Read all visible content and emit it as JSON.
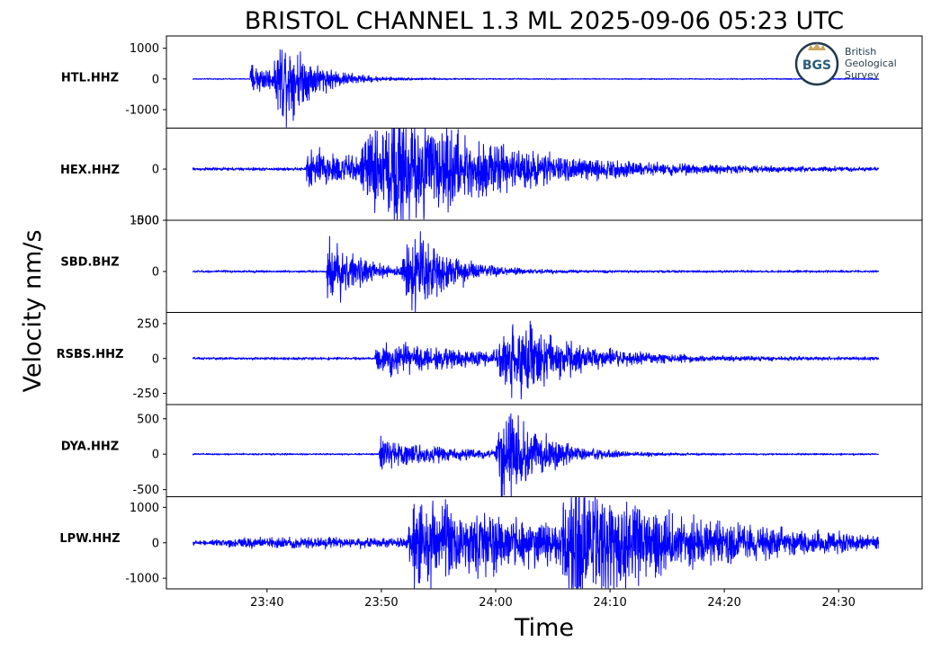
{
  "chart_data": {
    "type": "line",
    "title": "BRISTOL CHANNEL 1.3 ML   2025-09-06 05:23 UTC",
    "xlabel": "Time",
    "ylabel": "Velocity nm/s",
    "x_unit": "minutes after 23:30",
    "xlim": [
      1.2,
      67.3
    ],
    "x_ticks": [
      {
        "value": 10,
        "label": "23:40"
      },
      {
        "value": 20,
        "label": "23:50"
      },
      {
        "value": 30,
        "label": "24:00"
      },
      {
        "value": 40,
        "label": "24:10"
      },
      {
        "value": 50,
        "label": "24:20"
      },
      {
        "value": 60,
        "label": "24:30"
      }
    ],
    "trace_start": 3.5,
    "trace_end": 63.5,
    "line_color": "#0000ff",
    "series": [
      {
        "name": "HTL.HHZ",
        "ylim": [
          -1600,
          1400
        ],
        "ticks": [
          {
            "value": 1000,
            "label": "1000"
          },
          {
            "value": 0,
            "label": "0"
          },
          {
            "value": -1000,
            "label": "-1000"
          }
        ],
        "noise": 12,
        "events": [
          {
            "t": 8.5,
            "amp": 380,
            "decay": 3.5,
            "rise": 0.1
          },
          {
            "t": 10.6,
            "amp": 1200,
            "decay": 2.5,
            "rise": 0.8
          }
        ]
      },
      {
        "name": "HEX.HHZ",
        "ylim": [
          -500,
          400
        ],
        "ticks": [
          {
            "value": 0,
            "label": "0"
          },
          {
            "value": -500,
            "label": "-500"
          }
        ],
        "noise": 10,
        "events": [
          {
            "t": 13.4,
            "amp": 140,
            "decay": 7,
            "rise": 0.1
          },
          {
            "t": 18.0,
            "amp": 320,
            "decay": 4,
            "rise": 1.5
          },
          {
            "t": 20.0,
            "amp": 320,
            "decay": 10,
            "rise": 1.5
          }
        ]
      },
      {
        "name": "SBD.BHZ",
        "ylim": [
          -800,
          1000
        ],
        "ticks": [
          {
            "value": 1000,
            "label": "1000"
          },
          {
            "value": 0,
            "label": "0"
          }
        ],
        "noise": 15,
        "events": [
          {
            "t": 15.2,
            "amp": 520,
            "decay": 2.5,
            "rise": 0.1
          },
          {
            "t": 21.7,
            "amp": 900,
            "decay": 3,
            "rise": 1.2
          }
        ]
      },
      {
        "name": "RSBS.HHZ",
        "ylim": [
          -330,
          330
        ],
        "ticks": [
          {
            "value": 250,
            "label": "250"
          },
          {
            "value": 0,
            "label": "0"
          },
          {
            "value": -250,
            "label": "-250"
          }
        ],
        "noise": 6,
        "events": [
          {
            "t": 19.4,
            "amp": 70,
            "decay": 12,
            "rise": 0.2
          },
          {
            "t": 30.0,
            "amp": 300,
            "decay": 4,
            "rise": 2.0
          }
        ]
      },
      {
        "name": "DYA.HHZ",
        "ylim": [
          -600,
          700
        ],
        "ticks": [
          {
            "value": 500,
            "label": "500"
          },
          {
            "value": 0,
            "label": "0"
          },
          {
            "value": -500,
            "label": "-500"
          }
        ],
        "noise": 8,
        "events": [
          {
            "t": 19.8,
            "amp": 150,
            "decay": 6,
            "rise": 0.1
          },
          {
            "t": 30.0,
            "amp": 650,
            "decay": 3,
            "rise": 0.6
          }
        ]
      },
      {
        "name": "LPW.HHZ",
        "ylim": [
          -1300,
          1300
        ],
        "ticks": [
          {
            "value": 1000,
            "label": "1000"
          },
          {
            "value": 0,
            "label": "0"
          },
          {
            "value": -1000,
            "label": "-1000"
          }
        ],
        "noise": 40,
        "events": [
          {
            "t": 5.0,
            "amp": 70,
            "decay": 50,
            "rise": 3
          },
          {
            "t": 22.3,
            "amp": 780,
            "decay": 14,
            "rise": 0.2
          },
          {
            "t": 35.5,
            "amp": 1100,
            "decay": 9,
            "rise": 1.2
          }
        ]
      }
    ]
  },
  "logo": {
    "mark": "BGS",
    "lines": [
      "British",
      "Geological",
      "Survey"
    ],
    "ring_color": "#1f3a4d",
    "mark_color": "#2b5d7a",
    "crown_color": "#c9a55c"
  }
}
